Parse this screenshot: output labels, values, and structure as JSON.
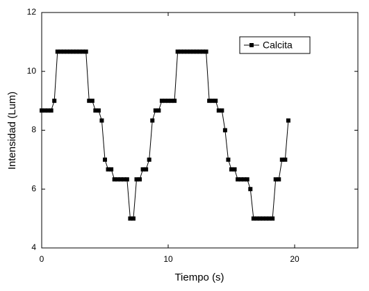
{
  "chart_data": {
    "type": "line",
    "x_label": "Tiempo (s)",
    "y_label": "Intensidad (Lum)",
    "x": [
      0,
      0.25,
      0.5,
      0.75,
      1,
      1.25,
      1.5,
      1.75,
      2,
      2.25,
      2.5,
      2.75,
      3,
      3.25,
      3.5,
      3.75,
      4,
      4.25,
      4.5,
      4.75,
      5,
      5.25,
      5.5,
      5.75,
      6,
      6.25,
      6.5,
      6.75,
      7,
      7.25,
      7.5,
      7.75,
      8,
      8.25,
      8.5,
      8.75,
      9,
      9.25,
      9.5,
      9.75,
      10,
      10.25,
      10.5,
      10.75,
      11,
      11.25,
      11.5,
      11.75,
      12,
      12.25,
      12.5,
      12.75,
      13,
      13.25,
      13.5,
      13.75,
      14,
      14.25,
      14.5,
      14.75,
      15,
      15.25,
      15.5,
      15.75,
      16,
      16.25,
      16.5,
      16.75,
      17,
      17.25,
      17.5,
      17.75,
      18,
      18.25,
      18.5,
      18.75,
      19,
      19.25,
      19.5
    ],
    "series": [
      {
        "name": "Calcita",
        "color": "#000000",
        "values": [
          8.67,
          8.67,
          8.67,
          8.67,
          9,
          10.67,
          10.67,
          10.67,
          10.67,
          10.67,
          10.67,
          10.67,
          10.67,
          10.67,
          10.67,
          9,
          9,
          8.67,
          8.67,
          8.33,
          7,
          6.67,
          6.67,
          6.33,
          6.33,
          6.33,
          6.33,
          6.33,
          5,
          5,
          6.33,
          6.33,
          6.67,
          6.67,
          7,
          8.33,
          8.67,
          8.67,
          9,
          9,
          9,
          9,
          9,
          10.67,
          10.67,
          10.67,
          10.67,
          10.67,
          10.67,
          10.67,
          10.67,
          10.67,
          10.67,
          9,
          9,
          9,
          8.67,
          8.67,
          8,
          7,
          6.67,
          6.67,
          6.33,
          6.33,
          6.33,
          6.33,
          6,
          5,
          5,
          5,
          5,
          5,
          5,
          5,
          6.33,
          6.33,
          7,
          7,
          8.33
        ]
      }
    ],
    "xlim": [
      0,
      25
    ],
    "xticks": [
      0,
      10,
      20
    ],
    "ylim": [
      4,
      12
    ],
    "yticks": [
      4,
      6,
      8,
      10,
      12
    ],
    "legend": "upper-right"
  }
}
